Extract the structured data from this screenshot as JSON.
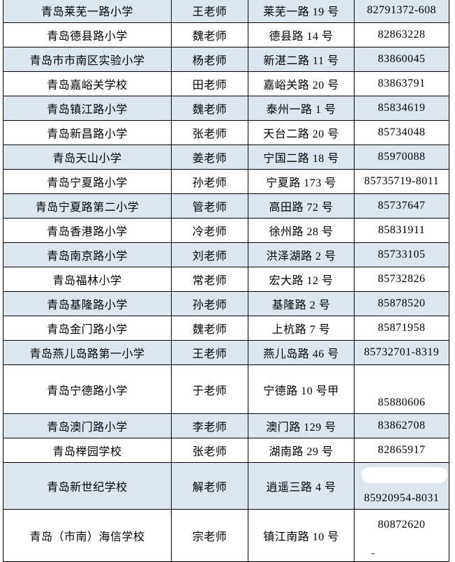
{
  "table": {
    "accent_row_color": "#dce6f1",
    "border_color": "#000000",
    "rows": [
      {
        "school": "青岛莱芜一路小学",
        "teacher": "王老师",
        "address": "莱芜一路 19 号",
        "phone": "82791372-608",
        "shade": "blue"
      },
      {
        "school": "青岛德县路小学",
        "teacher": "魏老师",
        "address": "德县路 14 号",
        "phone": "82863228",
        "shade": "white"
      },
      {
        "school": "青岛市市南区实验小学",
        "teacher": "杨老师",
        "address": "新湛二路 11 号",
        "phone": "83860045",
        "shade": "blue"
      },
      {
        "school": "青岛嘉峪关学校",
        "teacher": "田老师",
        "address": "嘉峪关路 20 号",
        "phone": "83863791",
        "shade": "white"
      },
      {
        "school": "青岛镇江路小学",
        "teacher": "魏老师",
        "address": "泰州一路 1 号",
        "phone": "85834619",
        "shade": "blue"
      },
      {
        "school": "青岛新昌路小学",
        "teacher": "张老师",
        "address": "天台二路 20 号",
        "phone": "85734048",
        "shade": "white"
      },
      {
        "school": "青岛天山小学",
        "teacher": "姜老师",
        "address": "宁国二路 18 号",
        "phone": "85970088",
        "shade": "blue"
      },
      {
        "school": "青岛宁夏路小学",
        "teacher": "孙老师",
        "address": "宁夏路 173 号",
        "phone": "85735719-8011",
        "shade": "white"
      },
      {
        "school": "青岛宁夏路第二小学",
        "teacher": "管老师",
        "address": "高田路 72 号",
        "phone": "85737647",
        "shade": "blue"
      },
      {
        "school": "青岛香港路小学",
        "teacher": "冷老师",
        "address": "徐州路 28 号",
        "phone": "85831911",
        "shade": "white"
      },
      {
        "school": "青岛南京路小学",
        "teacher": "刘老师",
        "address": "洪泽湖路 2 号",
        "phone": "85733105",
        "shade": "blue"
      },
      {
        "school": "青岛福林小学",
        "teacher": "常老师",
        "address": "宏大路 12 号",
        "phone": "85732826",
        "shade": "white"
      },
      {
        "school": "青岛基隆路小学",
        "teacher": "孙老师",
        "address": "基隆路 2 号",
        "phone": "85878520",
        "shade": "blue"
      },
      {
        "school": "青岛金门路小学",
        "teacher": "魏老师",
        "address": "上杭路 7 号",
        "phone": "85871958",
        "shade": "white"
      },
      {
        "school": "青岛燕儿岛路第一小学",
        "teacher": "王老师",
        "address": "燕儿岛路 46 号",
        "phone": "85732701-8319",
        "shade": "blue"
      },
      {
        "school": "青岛宁德路小学",
        "teacher": "于老师",
        "address": "宁德路 10 号甲",
        "phone": "85880606",
        "shade": "white"
      },
      {
        "school": "青岛澳门路小学",
        "teacher": "李老师",
        "address": "澳门路 129 号",
        "phone": "83862708",
        "shade": "blue"
      },
      {
        "school": "青岛榉园学校",
        "teacher": "张老师",
        "address": "湖南路 29 号",
        "phone": "82865917",
        "shade": "white"
      },
      {
        "school": "青岛新世纪学校",
        "teacher": "解老师",
        "address": "逍遥三路 4 号",
        "phone": "85920954-8031",
        "shade": "blue",
        "phone_redacted": true
      },
      {
        "school": "青岛（市南）海信学校",
        "teacher": "宗老师",
        "address": "镇江南路 10 号",
        "phone": "80872620",
        "shade": "white",
        "stray_mark": true
      }
    ]
  }
}
